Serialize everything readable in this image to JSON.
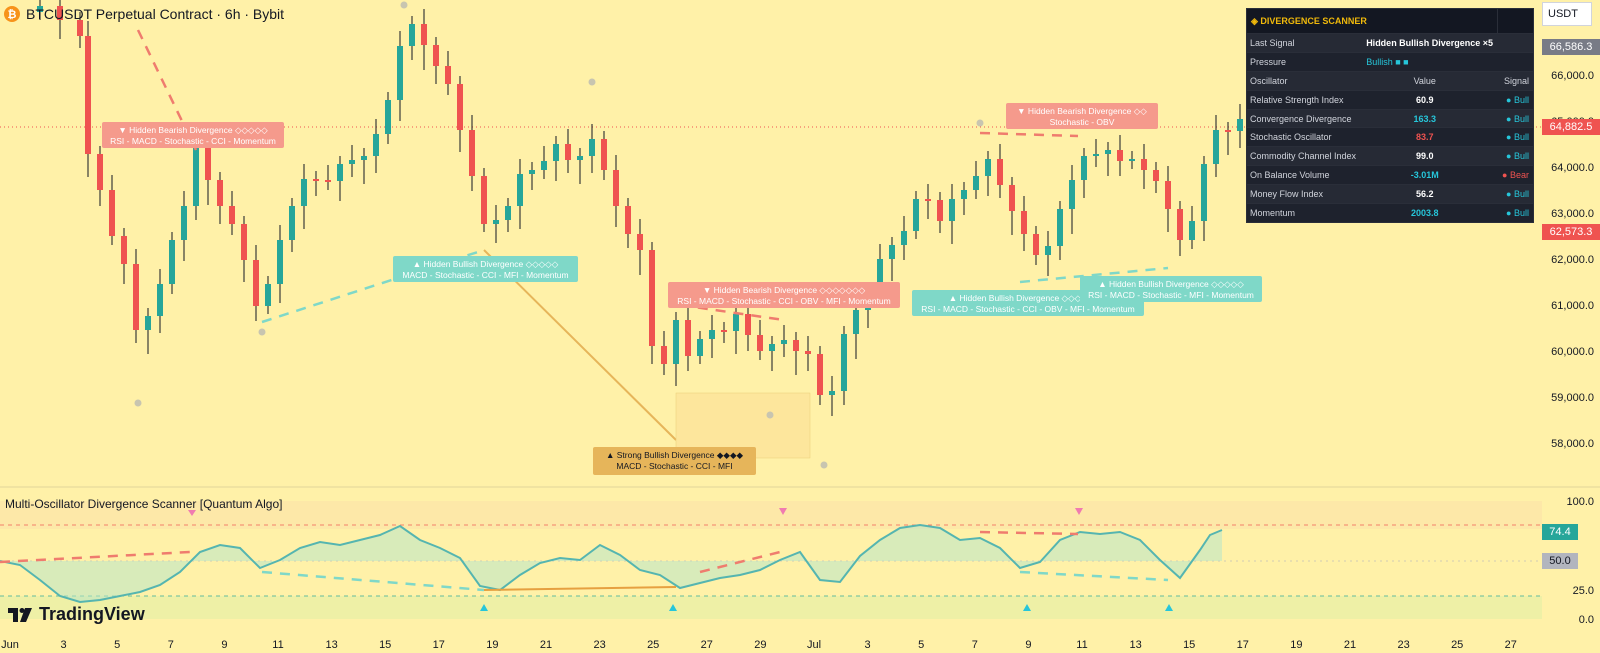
{
  "header": {
    "title": "BTCUSDT Perpetual Contract · 6h · Bybit",
    "currency": "USDT"
  },
  "colors": {
    "background": "#fff1a8",
    "bull": "#26a69a",
    "bear": "#ef5350",
    "bull_label": "#7fd8c8",
    "bear_label": "#f59a8c",
    "strong_label": "#e6b55a",
    "oscillator_line": "#55b5b0",
    "scanner_bg": "#1e222d"
  },
  "price_axis": {
    "ticks": [
      "66,000.0",
      "65,000.0",
      "64,000.0",
      "63,000.0",
      "62,000.0",
      "61,000.0",
      "60,000.0",
      "59,000.0",
      "58,000.0"
    ],
    "tags": [
      {
        "value": "66,586.3",
        "color": "#787b86"
      },
      {
        "value": "64,882.5",
        "color": "#ef5350"
      },
      {
        "value": "62,573.3",
        "color": "#ef5350"
      }
    ]
  },
  "osc_axis": {
    "ticks": [
      "100.0",
      "25.0",
      "0.0"
    ],
    "tags": [
      {
        "value": "74.4",
        "color": "#26a69a"
      },
      {
        "value": "50.0",
        "color": "#b2b5be"
      }
    ]
  },
  "time_axis": {
    "labels": [
      "Jun",
      "3",
      "5",
      "7",
      "9",
      "11",
      "13",
      "15",
      "17",
      "19",
      "21",
      "23",
      "25",
      "27",
      "29",
      "Jul",
      "3",
      "5",
      "7",
      "9",
      "11",
      "13",
      "15",
      "17",
      "19",
      "21",
      "23",
      "25",
      "27"
    ]
  },
  "divergence_labels": [
    {
      "kind": "bear",
      "title": "▼ Hidden Bearish Divergence  ◇◇◇◇◇",
      "detail": "RSI - MACD - Stochastic - CCI - Momentum"
    },
    {
      "kind": "bull",
      "title": "▲ Hidden Bullish Divergence  ◇◇◇◇◇",
      "detail": "MACD - Stochastic - CCI - MFI - Momentum"
    },
    {
      "kind": "bear",
      "title": "▼ Hidden Bearish Divergence  ◇◇◇◇◇◇◇",
      "detail": "RSI - MACD - Stochastic - CCI - OBV - MFI - Momentum"
    },
    {
      "kind": "strong",
      "title": "▲ Strong Bullish Divergence  ◆◆◆◆",
      "detail": "MACD - Stochastic - CCI - MFI"
    },
    {
      "kind": "bear",
      "title": "▼ Hidden Bearish Divergence  ◇◇",
      "detail": "Stochastic - OBV"
    },
    {
      "kind": "bull",
      "title": "▲ Hidden Bullish Divergence  ◇◇◇◇◇◇◇",
      "detail": "RSI - MACD - Stochastic - CCI - OBV - MFI - Momentum"
    },
    {
      "kind": "bull",
      "title": "▲ Hidden Bullish Divergence  ◇◇◇◇◇",
      "detail": "RSI - MACD - Stochastic - MFI - Momentum"
    }
  ],
  "scanner": {
    "title": "◈ DIVERGENCE SCANNER",
    "last_signal_label": "Last Signal",
    "last_signal_value": "Hidden Bullish Divergence ×5",
    "pressure_label": "Pressure",
    "pressure_value": "Bullish ■ ■",
    "col_oscillator": "Oscillator",
    "col_value": "Value",
    "col_signal": "Signal",
    "rows": [
      {
        "name": "Relative Strength Index",
        "value": "60.9",
        "signal": "● Bull",
        "value_color": "white",
        "signal_color": "bull"
      },
      {
        "name": "Convergence Divergence",
        "value": "163.3",
        "signal": "● Bull",
        "value_color": "bull",
        "signal_color": "bull"
      },
      {
        "name": "Stochastic Oscillator",
        "value": "83.7",
        "signal": "● Bull",
        "value_color": "bear",
        "signal_color": "bull"
      },
      {
        "name": "Commodity Channel Index",
        "value": "99.0",
        "signal": "● Bull",
        "value_color": "white",
        "signal_color": "bull"
      },
      {
        "name": "On Balance Volume",
        "value": "-3.01M",
        "signal": "● Bear",
        "value_color": "bull",
        "signal_color": "bear"
      },
      {
        "name": "Money Flow Index",
        "value": "56.2",
        "signal": "● Bull",
        "value_color": "white",
        "signal_color": "bull"
      },
      {
        "name": "Momentum",
        "value": "2003.8",
        "signal": "● Bull",
        "value_color": "bull",
        "signal_color": "bull"
      }
    ]
  },
  "indicator": {
    "title": "Multi-Oscillator Divergence Scanner [Quantum Algo]"
  },
  "branding": {
    "logo_text": "TradingView"
  }
}
